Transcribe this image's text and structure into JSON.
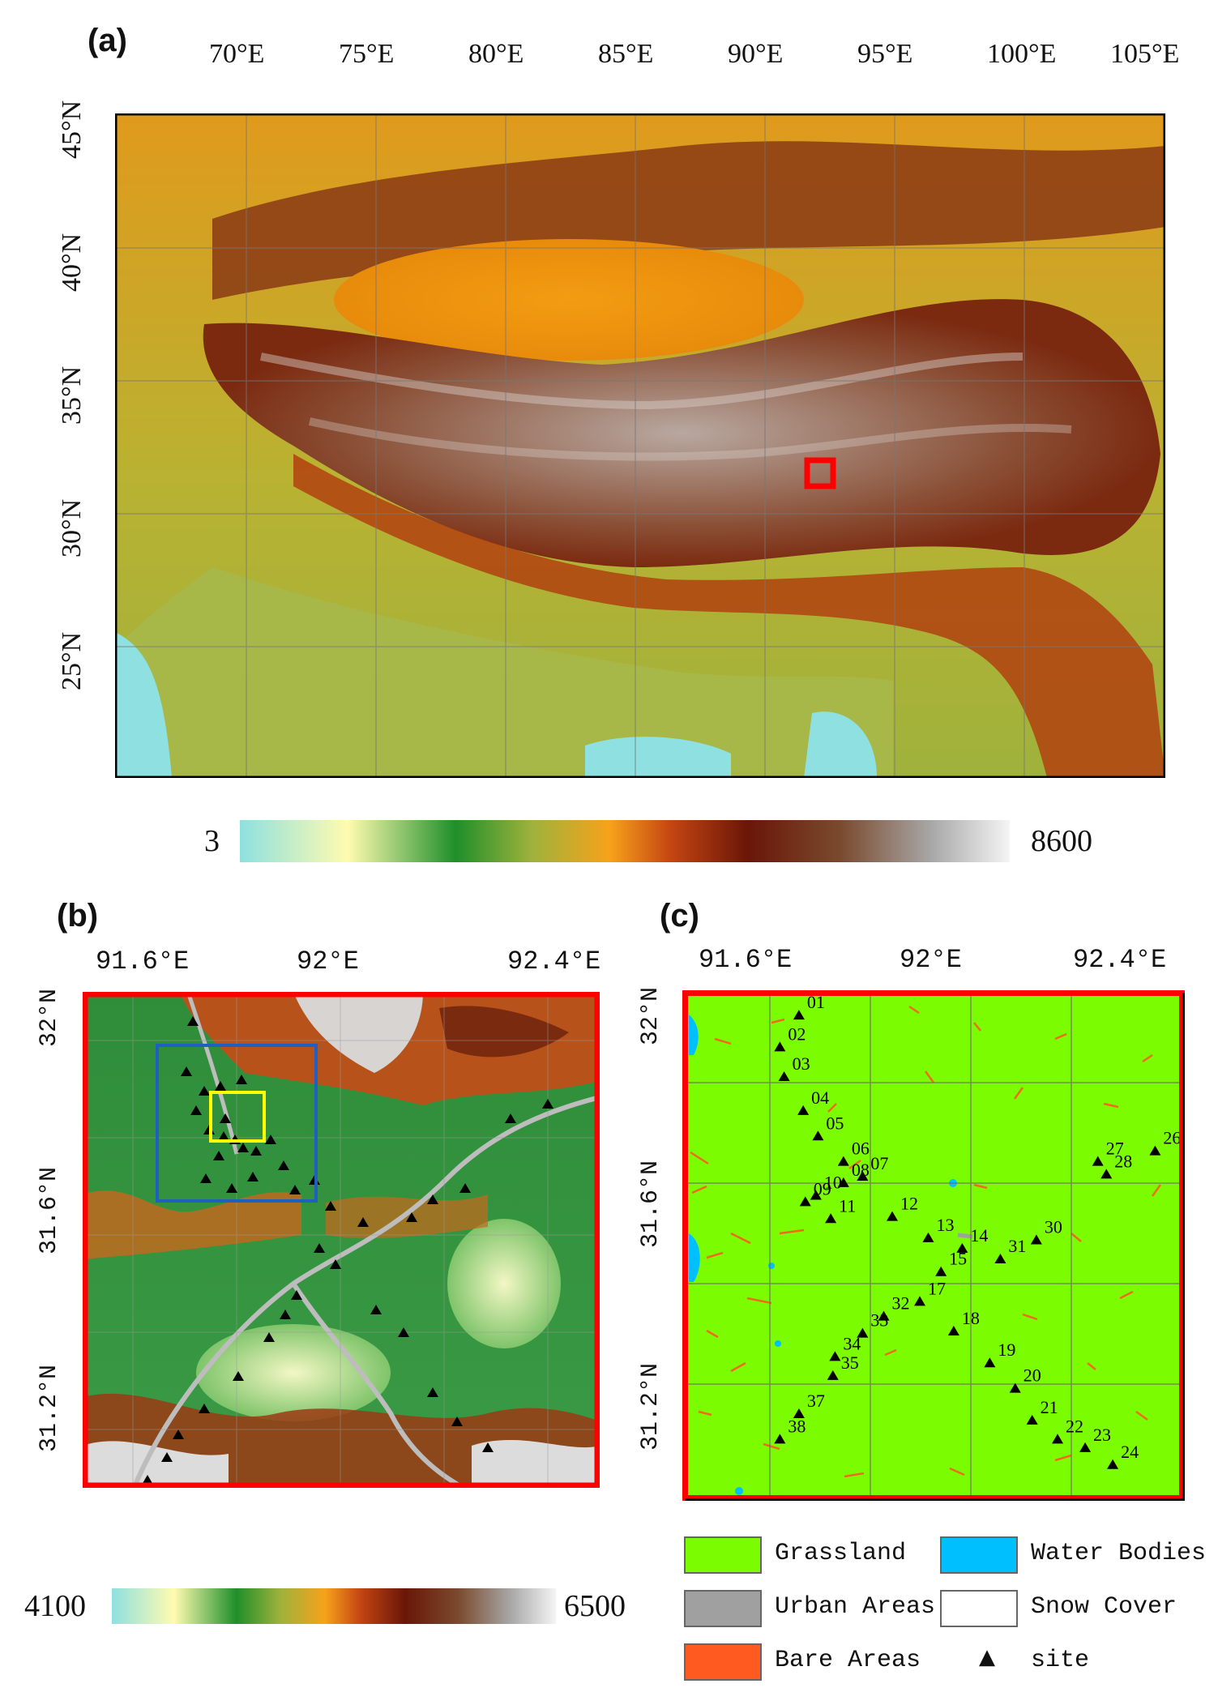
{
  "panel_a": {
    "label": "(a)",
    "lon_ticks": [
      "70°E",
      "75°E",
      "80°E",
      "85°E",
      "90°E",
      "95°E",
      "100°E",
      "105°E"
    ],
    "lat_ticks": [
      "45°N",
      "40°N",
      "35°N",
      "30°N",
      "25°N"
    ],
    "study_area_color": "#ff0000",
    "colorbar": {
      "min": "3",
      "max": "8600"
    }
  },
  "panel_b": {
    "label": "(b)",
    "lon_ticks": [
      "91.6°E",
      "92°E",
      "92.4°E"
    ],
    "lat_ticks": [
      "32°N",
      "31.6°N",
      "31.2°N"
    ],
    "frame_color": "#ff0000",
    "inset_colors": [
      "#1f5fbf",
      "#ffff00"
    ],
    "colorbar": {
      "min": "4100",
      "max": "6500"
    }
  },
  "panel_c": {
    "label": "(c)",
    "lon_ticks": [
      "91.6°E",
      "92°E",
      "92.4°E"
    ],
    "lat_ticks": [
      "32°N",
      "31.6°N",
      "31.2°N"
    ],
    "sites": [
      {
        "id": "01"
      },
      {
        "id": "02"
      },
      {
        "id": "03"
      },
      {
        "id": "04"
      },
      {
        "id": "05"
      },
      {
        "id": "06"
      },
      {
        "id": "07"
      },
      {
        "id": "08"
      },
      {
        "id": "09"
      },
      {
        "id": "10"
      },
      {
        "id": "11"
      },
      {
        "id": "12"
      },
      {
        "id": "13"
      },
      {
        "id": "14"
      },
      {
        "id": "15"
      },
      {
        "id": "17"
      },
      {
        "id": "18"
      },
      {
        "id": "19"
      },
      {
        "id": "20"
      },
      {
        "id": "21"
      },
      {
        "id": "22"
      },
      {
        "id": "23"
      },
      {
        "id": "24"
      },
      {
        "id": "26"
      },
      {
        "id": "27"
      },
      {
        "id": "28"
      },
      {
        "id": "30"
      },
      {
        "id": "31"
      },
      {
        "id": "32"
      },
      {
        "id": "33"
      },
      {
        "id": "34"
      },
      {
        "id": "35"
      },
      {
        "id": "37"
      },
      {
        "id": "38"
      }
    ]
  },
  "legend": {
    "items": [
      {
        "label": "Grassland",
        "color": "#7cfc00"
      },
      {
        "label": "Water Bodies",
        "color": "#00bfff"
      },
      {
        "label": "Urban Areas",
        "color": "#a0a0a0"
      },
      {
        "label": "Snow Cover",
        "color": "#ffffff"
      },
      {
        "label": "Bare Areas",
        "color": "#ff5a1f"
      },
      {
        "label": "site",
        "symbol": "▲"
      }
    ]
  }
}
